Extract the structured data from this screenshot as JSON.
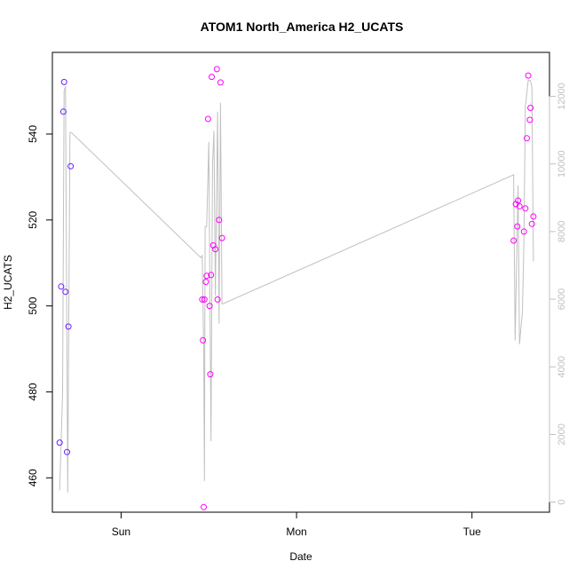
{
  "chart_data": {
    "type": "scatter",
    "title": "ATOM1 North_America H2_UCATS",
    "xlabel": "Date",
    "ylabel": "H2_UCATS",
    "x_tick_labels": [
      "Sun",
      "Mon",
      "Tue"
    ],
    "y_tick_labels": [
      "460",
      "480",
      "500",
      "520",
      "540"
    ],
    "y2_tick_labels": [
      "0",
      "2000",
      "4000",
      "6000",
      "8000",
      "10000",
      "12000"
    ],
    "y_range": [
      452,
      559
    ],
    "y2_range": [
      -300,
      13300
    ],
    "x_range_hours": [
      -9.4,
      58.6
    ],
    "grid": false,
    "legend": "none",
    "colors": {
      "scatter_low": "#6a1cff",
      "scatter_high": "#ff00ff",
      "line": "#c0c0c0"
    },
    "series": [
      {
        "kind": "points",
        "points": [
          {
            "x": -8.4,
            "y": 468.2
          },
          {
            "x": -8.2,
            "y": 504.5
          },
          {
            "x": -7.9,
            "y": 545.2
          },
          {
            "x": -7.8,
            "y": 552.1
          },
          {
            "x": -7.6,
            "y": 503.3
          },
          {
            "x": -7.4,
            "y": 466.0
          },
          {
            "x": -7.2,
            "y": 495.2
          },
          {
            "x": -6.9,
            "y": 532.5
          },
          {
            "x": 11.1,
            "y": 501.5
          },
          {
            "x": 11.2,
            "y": 492.0
          },
          {
            "x": 11.3,
            "y": 453.2
          },
          {
            "x": 11.4,
            "y": 501.5
          },
          {
            "x": 11.6,
            "y": 505.6
          },
          {
            "x": 11.7,
            "y": 507.0
          },
          {
            "x": 11.9,
            "y": 543.5
          },
          {
            "x": 12.1,
            "y": 500.0
          },
          {
            "x": 12.2,
            "y": 484.1
          },
          {
            "x": 12.3,
            "y": 507.2
          },
          {
            "x": 12.4,
            "y": 553.3
          },
          {
            "x": 12.6,
            "y": 514.1
          },
          {
            "x": 12.9,
            "y": 513.2
          },
          {
            "x": 13.1,
            "y": 555.1
          },
          {
            "x": 13.2,
            "y": 501.5
          },
          {
            "x": 13.4,
            "y": 520.0
          },
          {
            "x": 13.6,
            "y": 552.0
          },
          {
            "x": 13.8,
            "y": 515.8
          },
          {
            "x": 53.7,
            "y": 515.2
          },
          {
            "x": 54.0,
            "y": 523.7
          },
          {
            "x": 54.2,
            "y": 518.5
          },
          {
            "x": 54.3,
            "y": 524.5
          },
          {
            "x": 54.5,
            "y": 523.2
          },
          {
            "x": 55.1,
            "y": 517.3
          },
          {
            "x": 55.3,
            "y": 522.7
          },
          {
            "x": 55.5,
            "y": 539.0
          },
          {
            "x": 55.7,
            "y": 553.6
          },
          {
            "x": 55.9,
            "y": 543.3
          },
          {
            "x": 56.0,
            "y": 546.1
          },
          {
            "x": 56.2,
            "y": 519.1
          },
          {
            "x": 56.4,
            "y": 520.8
          }
        ]
      },
      {
        "kind": "line",
        "axis": "right",
        "points": [
          {
            "x": -8.4,
            "y": 346
          },
          {
            "x": -8.0,
            "y": 3200
          },
          {
            "x": -7.8,
            "y": 12150
          },
          {
            "x": -7.6,
            "y": 12300
          },
          {
            "x": -7.3,
            "y": 283
          },
          {
            "x": -7.0,
            "y": 10920
          },
          {
            "x": -6.8,
            "y": 10930
          },
          {
            "x": 10.9,
            "y": 7230
          },
          {
            "x": 11.1,
            "y": 7290
          },
          {
            "x": 11.3,
            "y": 4470
          },
          {
            "x": 11.4,
            "y": 622
          },
          {
            "x": 11.5,
            "y": 8150
          },
          {
            "x": 11.7,
            "y": 8150
          },
          {
            "x": 12.0,
            "y": 10650
          },
          {
            "x": 12.3,
            "y": 1800
          },
          {
            "x": 12.5,
            "y": 10000
          },
          {
            "x": 12.7,
            "y": 10980
          },
          {
            "x": 12.9,
            "y": 6100
          },
          {
            "x": 13.2,
            "y": 11550
          },
          {
            "x": 13.4,
            "y": 5280
          },
          {
            "x": 13.6,
            "y": 11810
          },
          {
            "x": 13.8,
            "y": 5860
          },
          {
            "x": 14.0,
            "y": 5870
          },
          {
            "x": 53.7,
            "y": 9680
          },
          {
            "x": 53.9,
            "y": 4780
          },
          {
            "x": 54.3,
            "y": 9370
          },
          {
            "x": 54.5,
            "y": 4670
          },
          {
            "x": 54.9,
            "y": 5620
          },
          {
            "x": 55.1,
            "y": 7720
          },
          {
            "x": 55.3,
            "y": 11690
          },
          {
            "x": 55.7,
            "y": 12480
          },
          {
            "x": 56.0,
            "y": 12460
          },
          {
            "x": 56.2,
            "y": 12260
          },
          {
            "x": 56.4,
            "y": 7120
          }
        ]
      }
    ]
  }
}
